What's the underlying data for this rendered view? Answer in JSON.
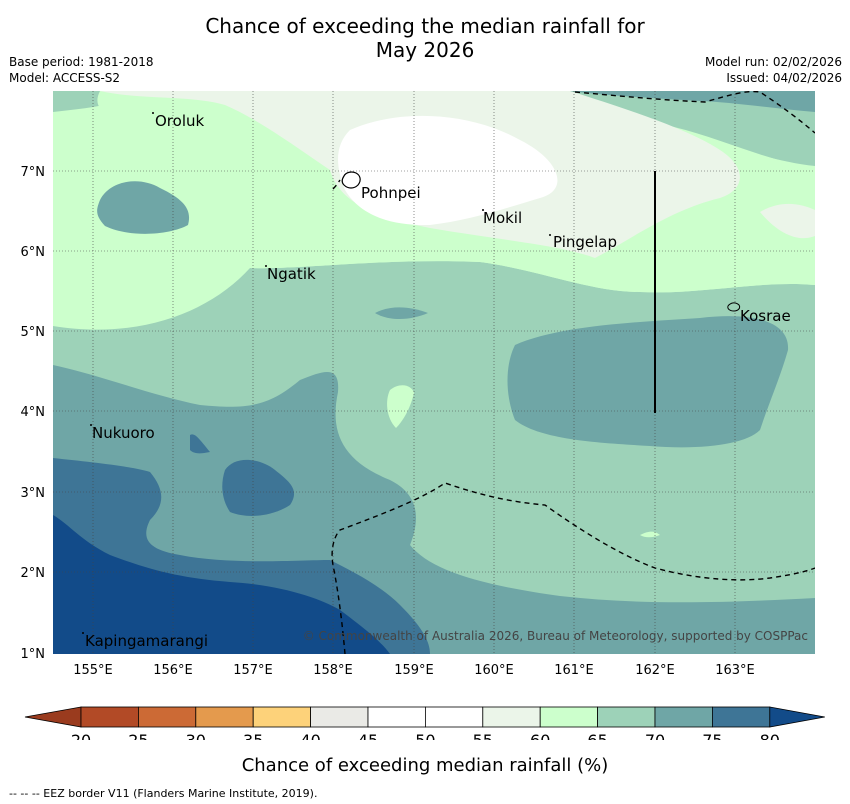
{
  "title": {
    "line1": "Chance of exceeding the median rainfall for",
    "line2": "May 2026"
  },
  "meta": {
    "base_period": "Base period: 1981-2018",
    "model": "Model: ACCESS-S2",
    "model_run": "Model run: 02/02/2026",
    "issued": "Issued: 04/02/2026"
  },
  "map": {
    "longitude_ticks": [
      "155°E",
      "156°E",
      "157°E",
      "158°E",
      "159°E",
      "160°E",
      "161°E",
      "162°E",
      "163°E"
    ],
    "latitude_ticks": [
      "7°N",
      "6°N",
      "5°N",
      "4°N",
      "3°N",
      "2°N",
      "1°N"
    ],
    "places": [
      "Oroluk",
      "Pohnpei",
      "Mokil",
      "Pingelap",
      "Ngatik",
      "Kosrae",
      "Nukuoro",
      "Kapingamarangi"
    ],
    "copyright": "© Commonwealth of Australia 2026, Bureau of Meteorology, supported by COSPPac"
  },
  "colorbar": {
    "tick_labels": [
      "20",
      "25",
      "30",
      "35",
      "40",
      "45",
      "50",
      "55",
      "60",
      "65",
      "70",
      "75",
      "80"
    ],
    "colors": [
      "#b24a26",
      "#cc6a35",
      "#e49a4d",
      "#fdd27a",
      "#eaeae6",
      "#ffffff",
      "#ffffff",
      "#ebf5e9",
      "#ccffcc",
      "#9dd2b8",
      "#6fa6a6",
      "#3e7596"
    ],
    "low_color": "#9a3b1e",
    "high_color": "#124b89",
    "label": "Chance of exceeding median rainfall (%)"
  },
  "footnote": "--  --  -- EEZ border V11 (Flanders Marine Institute, 2019)."
}
